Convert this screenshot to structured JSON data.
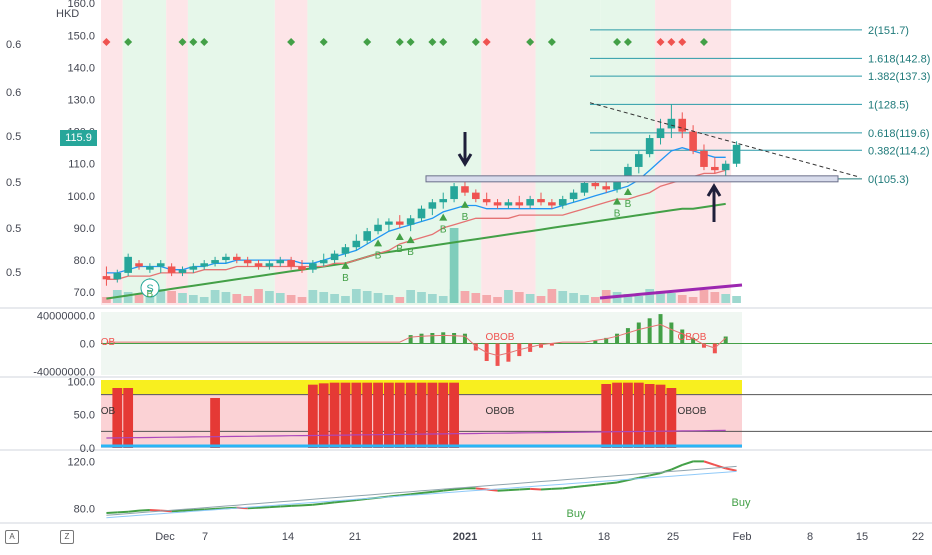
{
  "currency": "HKD",
  "last_price_label": "115.9",
  "left_scale_labels": [
    "0.6",
    "0.6",
    "0.5",
    "0.5",
    "0.5",
    "0.5",
    "0.5"
  ],
  "fib_levels": [
    {
      "label": "2(151.7)",
      "value": 151.7
    },
    {
      "label": "1.618(142.8)",
      "value": 142.8
    },
    {
      "label": "1.382(137.3)",
      "value": 137.3
    },
    {
      "label": "1(128.5)",
      "value": 128.5
    },
    {
      "label": "0.618(119.6)",
      "value": 119.6
    },
    {
      "label": "0.382(114.2)",
      "value": 114.2
    },
    {
      "label": "0(105.3)",
      "value": 105.3
    }
  ],
  "toolbar": {
    "icon1": "chart-settings-icon",
    "icon2": "zoom-icon"
  },
  "chart_data": [
    {
      "type": "candlestick",
      "title": "",
      "x_ticks": [
        "Dec",
        "7",
        "14",
        "21",
        "2021",
        "11",
        "18",
        "25",
        "Feb",
        "8",
        "15",
        "22"
      ],
      "y_ticks": [
        "160.0",
        "150.0",
        "140.0",
        "130.0",
        "120.0",
        "110.0",
        "100.0",
        "90.0",
        "80.0",
        "70.0"
      ],
      "ylim": [
        66,
        161
      ],
      "candles": [
        {
          "o": 75,
          "h": 78,
          "l": 72,
          "c": 74
        },
        {
          "o": 74,
          "h": 77,
          "l": 73,
          "c": 76
        },
        {
          "o": 76,
          "h": 82,
          "l": 75,
          "c": 81
        },
        {
          "o": 79,
          "h": 80,
          "l": 77,
          "c": 78
        },
        {
          "o": 77,
          "h": 79,
          "l": 76,
          "c": 78
        },
        {
          "o": 78,
          "h": 80,
          "l": 76,
          "c": 79
        },
        {
          "o": 78,
          "h": 79,
          "l": 75,
          "c": 76
        },
        {
          "o": 76,
          "h": 78,
          "l": 75,
          "c": 77
        },
        {
          "o": 77,
          "h": 79,
          "l": 76,
          "c": 78
        },
        {
          "o": 78,
          "h": 80,
          "l": 77,
          "c": 79
        },
        {
          "o": 79,
          "h": 81,
          "l": 78,
          "c": 80
        },
        {
          "o": 80,
          "h": 82,
          "l": 79,
          "c": 81
        },
        {
          "o": 81,
          "h": 82,
          "l": 79,
          "c": 80
        },
        {
          "o": 80,
          "h": 81,
          "l": 78,
          "c": 79
        },
        {
          "o": 79,
          "h": 80,
          "l": 77,
          "c": 78
        },
        {
          "o": 78,
          "h": 80,
          "l": 77,
          "c": 79
        },
        {
          "o": 79,
          "h": 81,
          "l": 78,
          "c": 80
        },
        {
          "o": 80,
          "h": 81,
          "l": 77,
          "c": 78
        },
        {
          "o": 78,
          "h": 80,
          "l": 76,
          "c": 77
        },
        {
          "o": 77,
          "h": 80,
          "l": 76,
          "c": 79
        },
        {
          "o": 79,
          "h": 82,
          "l": 78,
          "c": 80
        },
        {
          "o": 80,
          "h": 83,
          "l": 79,
          "c": 82
        },
        {
          "o": 82,
          "h": 85,
          "l": 81,
          "c": 84
        },
        {
          "o": 84,
          "h": 88,
          "l": 83,
          "c": 86
        },
        {
          "o": 86,
          "h": 90,
          "l": 85,
          "c": 89
        },
        {
          "o": 89,
          "h": 93,
          "l": 88,
          "c": 91
        },
        {
          "o": 91,
          "h": 93,
          "l": 89,
          "c": 92
        },
        {
          "o": 92,
          "h": 94,
          "l": 90,
          "c": 91
        },
        {
          "o": 91,
          "h": 94,
          "l": 89,
          "c": 93
        },
        {
          "o": 93,
          "h": 97,
          "l": 92,
          "c": 96
        },
        {
          "o": 96,
          "h": 99,
          "l": 94,
          "c": 98
        },
        {
          "o": 98,
          "h": 101,
          "l": 96,
          "c": 99
        },
        {
          "o": 99,
          "h": 104,
          "l": 98,
          "c": 103
        },
        {
          "o": 103,
          "h": 105,
          "l": 100,
          "c": 101
        },
        {
          "o": 101,
          "h": 102,
          "l": 98,
          "c": 99
        },
        {
          "o": 99,
          "h": 101,
          "l": 97,
          "c": 98
        },
        {
          "o": 98,
          "h": 99,
          "l": 96,
          "c": 97
        },
        {
          "o": 97,
          "h": 99,
          "l": 96,
          "c": 98
        },
        {
          "o": 98,
          "h": 100,
          "l": 96,
          "c": 97
        },
        {
          "o": 97,
          "h": 100,
          "l": 96,
          "c": 99
        },
        {
          "o": 99,
          "h": 101,
          "l": 97,
          "c": 98
        },
        {
          "o": 98,
          "h": 99,
          "l": 96,
          "c": 97
        },
        {
          "o": 97,
          "h": 100,
          "l": 96,
          "c": 99
        },
        {
          "o": 99,
          "h": 102,
          "l": 98,
          "c": 101
        },
        {
          "o": 101,
          "h": 105,
          "l": 100,
          "c": 104
        },
        {
          "o": 104,
          "h": 106,
          "l": 102,
          "c": 103
        },
        {
          "o": 103,
          "h": 105,
          "l": 101,
          "c": 102
        },
        {
          "o": 102,
          "h": 106,
          "l": 101,
          "c": 105
        },
        {
          "o": 105,
          "h": 110,
          "l": 104,
          "c": 109
        },
        {
          "o": 109,
          "h": 114,
          "l": 107,
          "c": 113
        },
        {
          "o": 113,
          "h": 119,
          "l": 112,
          "c": 118
        },
        {
          "o": 118,
          "h": 124,
          "l": 116,
          "c": 121
        },
        {
          "o": 121,
          "h": 128.5,
          "l": 118,
          "c": 124
        },
        {
          "o": 124,
          "h": 126,
          "l": 118,
          "c": 120
        },
        {
          "o": 120,
          "h": 122,
          "l": 113,
          "c": 114
        },
        {
          "o": 114,
          "h": 116,
          "l": 108,
          "c": 109
        },
        {
          "o": 109,
          "h": 112,
          "l": 107,
          "c": 108
        },
        {
          "o": 108,
          "h": 111,
          "l": 106,
          "c": 110
        },
        {
          "o": 110,
          "h": 117,
          "l": 109,
          "c": 115.9
        }
      ],
      "sma_fast": [
        76,
        76,
        77,
        78,
        78,
        78,
        77,
        77,
        78,
        78,
        79,
        79,
        80,
        80,
        80,
        80,
        80,
        80,
        79,
        79,
        80,
        81,
        82,
        83,
        85,
        87,
        89,
        90,
        91,
        92,
        93,
        95,
        96,
        97,
        97,
        96,
        96,
        96,
        96,
        96,
        96,
        96,
        97,
        98,
        99,
        100,
        101,
        102,
        103,
        105,
        108,
        111,
        114,
        115,
        114,
        113,
        112,
        112
      ],
      "sma_mid": [
        74,
        74,
        75,
        75,
        75,
        76,
        76,
        76,
        76,
        77,
        77,
        77,
        78,
        78,
        78,
        78,
        78,
        78,
        78,
        78,
        78,
        79,
        79,
        80,
        81,
        82,
        83,
        85,
        86,
        87,
        88,
        90,
        91,
        92,
        93,
        93,
        93,
        93,
        94,
        94,
        94,
        94,
        94,
        95,
        96,
        97,
        98,
        99,
        99,
        100,
        101,
        103,
        104,
        105,
        106,
        107,
        107,
        108
      ],
      "sma_slow": [
        68,
        68.5,
        69,
        69.5,
        70,
        70.5,
        71,
        71.5,
        72,
        72.5,
        73,
        73.5,
        74,
        74.5,
        75,
        75.5,
        76,
        76.5,
        77,
        77.5,
        78,
        78.5,
        79,
        80,
        81,
        82,
        82.5,
        83,
        83.5,
        84,
        84.5,
        85,
        85.5,
        86,
        86.5,
        87,
        87.5,
        88,
        88.5,
        89,
        89.5,
        90,
        90.5,
        91,
        91.5,
        92,
        92.5,
        93,
        93.5,
        94,
        94.5,
        95,
        95.5,
        96,
        96,
        96.5,
        97,
        97.5
      ],
      "signal_labels": [
        "S",
        "B",
        "B",
        "B",
        "B",
        "B",
        "B",
        "B",
        "B",
        "B"
      ]
    },
    {
      "type": "bar",
      "title": "",
      "y_ticks": [
        "40000000.0",
        "0.0",
        "-40000000.0"
      ],
      "ylim": [
        -45000000,
        45000000
      ],
      "annotations": [
        "OB",
        "OBOB",
        "OBOB"
      ],
      "values": [
        0,
        0,
        0,
        0,
        0,
        0,
        0,
        0,
        0,
        0,
        0,
        0,
        0,
        0,
        0,
        0,
        0,
        0,
        0,
        0,
        0,
        0,
        0,
        0,
        0,
        0,
        0,
        0,
        12000000,
        14000000,
        15000000,
        16000000,
        15000000,
        14000000,
        -10000000,
        -25000000,
        -32000000,
        -26000000,
        -18000000,
        -12000000,
        -6000000,
        -3000000,
        0,
        0,
        0,
        4000000,
        8000000,
        14000000,
        22000000,
        30000000,
        36000000,
        42000000,
        30000000,
        20000000,
        8000000,
        -6000000,
        -14000000,
        10000000
      ]
    },
    {
      "type": "bar",
      "title": "",
      "y_ticks": [
        "100.0",
        "50.0",
        "0.0"
      ],
      "ylim": [
        0,
        102
      ],
      "annotations": [
        "OB",
        "OBOB",
        "OBOB"
      ],
      "values": [
        0,
        90,
        90,
        0,
        0,
        0,
        0,
        0,
        0,
        0,
        75,
        0,
        0,
        0,
        0,
        0,
        0,
        0,
        0,
        95,
        97,
        98,
        98,
        98,
        98,
        98,
        98,
        98,
        98,
        98,
        98,
        98,
        98,
        0,
        0,
        0,
        0,
        0,
        0,
        0,
        0,
        0,
        0,
        0,
        0,
        0,
        96,
        98,
        98,
        98,
        96,
        95,
        90,
        0,
        0,
        0,
        0,
        0
      ]
    },
    {
      "type": "line",
      "title": "",
      "y_ticks": [
        "120.0",
        "80.0"
      ],
      "ylim": [
        70,
        128
      ],
      "signal_labels": [
        "Buy",
        "Buy"
      ],
      "values": [
        76,
        76.5,
        77,
        78,
        78.5,
        78,
        77.5,
        78,
        78.5,
        79,
        79.5,
        80,
        80.5,
        80,
        80.5,
        81,
        81.5,
        82,
        82.5,
        83,
        84,
        85,
        86,
        87,
        88,
        89,
        90,
        91,
        92,
        93,
        94,
        95,
        96,
        97,
        97,
        96,
        95,
        95.5,
        96,
        96.5,
        96,
        96.5,
        97,
        98,
        99,
        100,
        101,
        102,
        104,
        106,
        108,
        110,
        113,
        117,
        120,
        120,
        117,
        114,
        112,
        110,
        112,
        115
      ]
    }
  ]
}
